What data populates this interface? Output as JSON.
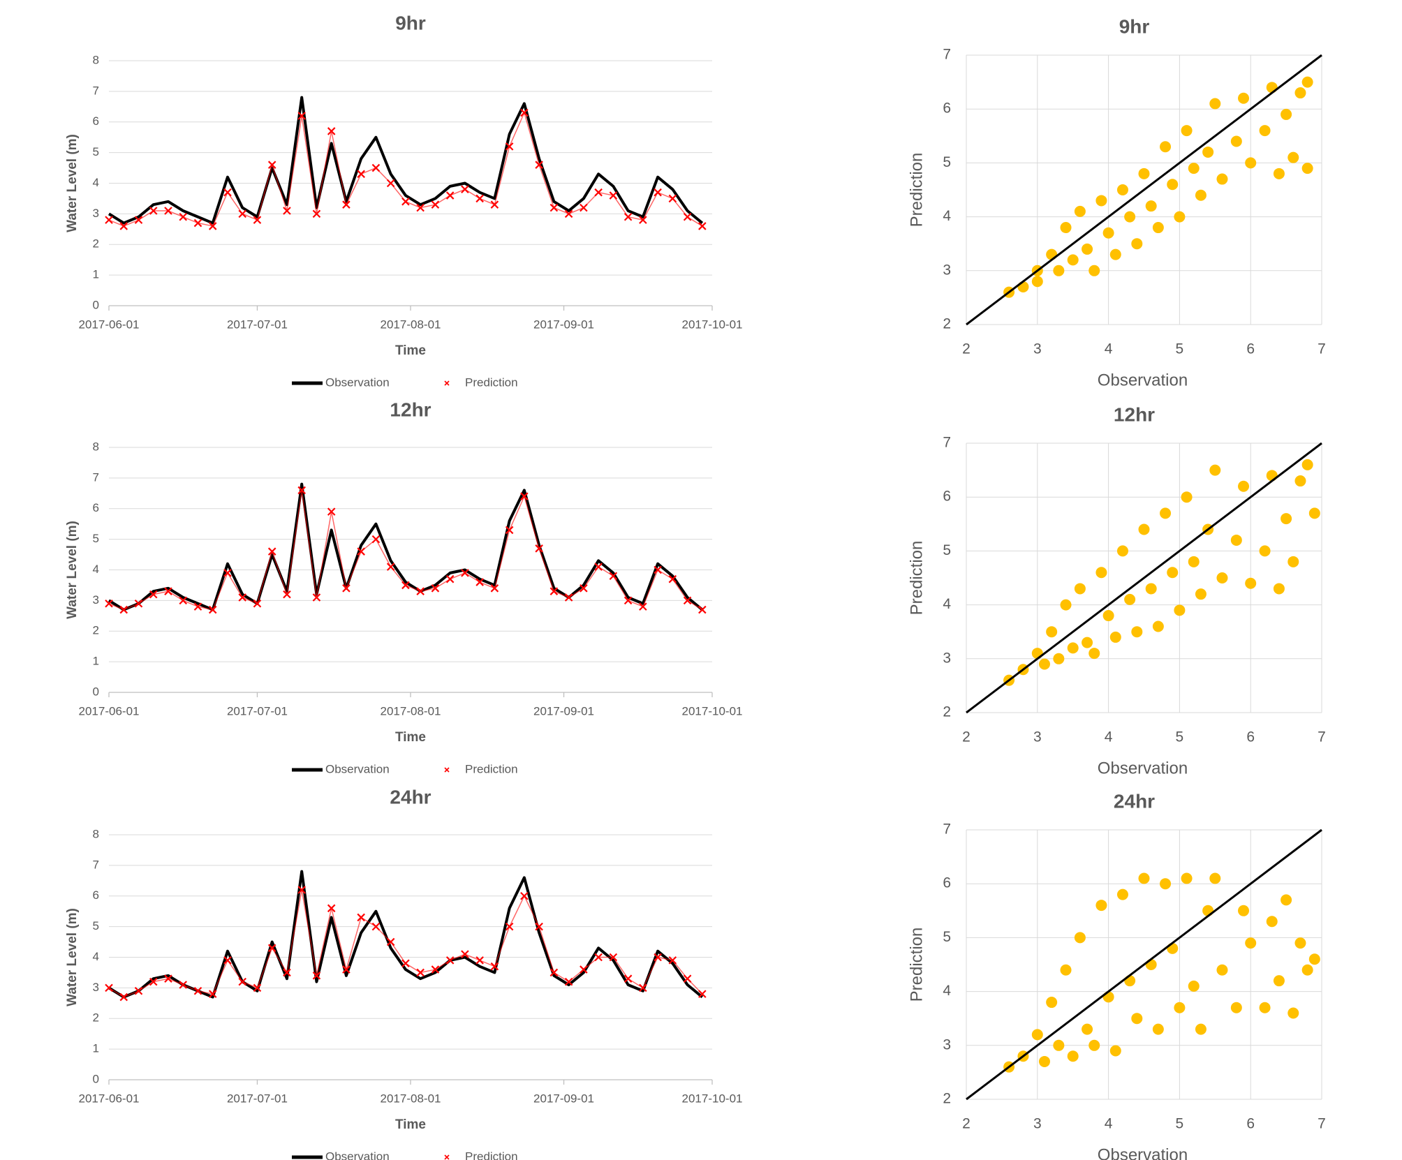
{
  "chart_data": [
    {
      "type": "line",
      "title": "9hr",
      "x_label": "Time",
      "y_label": "Water Level (m)",
      "grid": true,
      "legend": "bottom",
      "x": [
        "2017-06-01",
        "2017-06-04",
        "2017-06-07",
        "2017-06-10",
        "2017-06-13",
        "2017-06-16",
        "2017-06-19",
        "2017-06-22",
        "2017-06-25",
        "2017-06-28",
        "2017-07-01",
        "2017-07-04",
        "2017-07-07",
        "2017-07-10",
        "2017-07-13",
        "2017-07-16",
        "2017-07-19",
        "2017-07-22",
        "2017-07-25",
        "2017-07-28",
        "2017-07-31",
        "2017-08-03",
        "2017-08-06",
        "2017-08-09",
        "2017-08-12",
        "2017-08-15",
        "2017-08-18",
        "2017-08-21",
        "2017-08-24",
        "2017-08-27",
        "2017-08-30",
        "2017-09-02",
        "2017-09-05",
        "2017-09-08",
        "2017-09-11",
        "2017-09-14",
        "2017-09-17",
        "2017-09-20",
        "2017-09-23",
        "2017-09-26",
        "2017-09-29"
      ],
      "series": [
        {
          "name": "Observation",
          "color": "#000000",
          "marker": "line",
          "values": [
            3.0,
            2.7,
            2.9,
            3.3,
            3.4,
            3.1,
            2.9,
            2.7,
            4.2,
            3.2,
            2.9,
            4.5,
            3.3,
            6.8,
            3.2,
            5.3,
            3.4,
            4.8,
            5.5,
            4.3,
            3.6,
            3.3,
            3.5,
            3.9,
            4.0,
            3.7,
            3.5,
            5.6,
            6.6,
            4.8,
            3.4,
            3.1,
            3.5,
            4.3,
            3.9,
            3.1,
            2.9,
            4.2,
            3.8,
            3.1,
            2.7
          ]
        },
        {
          "name": "Prediction",
          "color": "#ff0000",
          "marker": "x",
          "values": [
            2.8,
            2.6,
            2.8,
            3.1,
            3.1,
            2.9,
            2.7,
            2.6,
            3.7,
            3.0,
            2.8,
            4.6,
            3.1,
            6.2,
            3.0,
            5.7,
            3.3,
            4.3,
            4.5,
            4.0,
            3.4,
            3.2,
            3.3,
            3.6,
            3.8,
            3.5,
            3.3,
            5.2,
            6.3,
            4.6,
            3.2,
            3.0,
            3.2,
            3.7,
            3.6,
            2.9,
            2.8,
            3.7,
            3.5,
            2.9,
            2.6
          ]
        }
      ],
      "xlim": [
        "2017-06-01",
        "2017-10-01"
      ],
      "xticks": [
        "2017-06-01",
        "2017-07-01",
        "2017-08-01",
        "2017-09-01",
        "2017-10-01"
      ],
      "ylim": [
        0,
        8
      ],
      "yticks": [
        0,
        1,
        2,
        3,
        4,
        5,
        6,
        7,
        8
      ]
    },
    {
      "type": "scatter",
      "title": "9hr",
      "x_label": "Observation",
      "y_label": "Prediction",
      "color": "#ffc000",
      "grid": true,
      "identity_line": true,
      "x": [
        2.6,
        2.8,
        3.0,
        3.0,
        3.2,
        3.3,
        3.4,
        3.5,
        3.6,
        3.7,
        3.8,
        3.9,
        4.0,
        4.1,
        4.2,
        4.3,
        4.4,
        4.5,
        4.6,
        4.7,
        4.8,
        4.9,
        5.0,
        5.1,
        5.2,
        5.3,
        5.4,
        5.5,
        5.6,
        5.8,
        5.9,
        6.0,
        6.2,
        6.3,
        6.4,
        6.5,
        6.6,
        6.7,
        6.8,
        6.8
      ],
      "values": [
        2.6,
        2.7,
        3.0,
        2.8,
        3.3,
        3.0,
        3.8,
        3.2,
        4.1,
        3.4,
        3.0,
        4.3,
        3.7,
        3.3,
        4.5,
        4.0,
        3.5,
        4.8,
        4.2,
        3.8,
        5.3,
        4.6,
        4.0,
        5.6,
        4.9,
        4.4,
        5.2,
        6.1,
        4.7,
        5.4,
        6.2,
        5.0,
        5.6,
        6.4,
        4.8,
        5.9,
        5.1,
        6.3,
        6.5,
        4.9
      ],
      "xlim": [
        2,
        7
      ],
      "xticks": [
        2,
        3,
        4,
        5,
        6,
        7
      ],
      "ylim": [
        2,
        7
      ],
      "yticks": [
        2,
        3,
        4,
        5,
        6,
        7
      ]
    },
    {
      "type": "line",
      "title": "12hr",
      "x_label": "Time",
      "y_label": "Water Level (m)",
      "grid": true,
      "legend": "bottom",
      "x": [
        "2017-06-01",
        "2017-06-04",
        "2017-06-07",
        "2017-06-10",
        "2017-06-13",
        "2017-06-16",
        "2017-06-19",
        "2017-06-22",
        "2017-06-25",
        "2017-06-28",
        "2017-07-01",
        "2017-07-04",
        "2017-07-07",
        "2017-07-10",
        "2017-07-13",
        "2017-07-16",
        "2017-07-19",
        "2017-07-22",
        "2017-07-25",
        "2017-07-28",
        "2017-07-31",
        "2017-08-03",
        "2017-08-06",
        "2017-08-09",
        "2017-08-12",
        "2017-08-15",
        "2017-08-18",
        "2017-08-21",
        "2017-08-24",
        "2017-08-27",
        "2017-08-30",
        "2017-09-02",
        "2017-09-05",
        "2017-09-08",
        "2017-09-11",
        "2017-09-14",
        "2017-09-17",
        "2017-09-20",
        "2017-09-23",
        "2017-09-26",
        "2017-09-29"
      ],
      "series": [
        {
          "name": "Observation",
          "color": "#000000",
          "marker": "line",
          "values": [
            3.0,
            2.7,
            2.9,
            3.3,
            3.4,
            3.1,
            2.9,
            2.7,
            4.2,
            3.2,
            2.9,
            4.5,
            3.3,
            6.8,
            3.2,
            5.3,
            3.4,
            4.8,
            5.5,
            4.3,
            3.6,
            3.3,
            3.5,
            3.9,
            4.0,
            3.7,
            3.5,
            5.6,
            6.6,
            4.8,
            3.4,
            3.1,
            3.5,
            4.3,
            3.9,
            3.1,
            2.9,
            4.2,
            3.8,
            3.1,
            2.7
          ]
        },
        {
          "name": "Prediction",
          "color": "#ff0000",
          "marker": "x",
          "values": [
            2.9,
            2.7,
            2.9,
            3.2,
            3.3,
            3.0,
            2.8,
            2.7,
            3.9,
            3.1,
            2.9,
            4.6,
            3.2,
            6.6,
            3.1,
            5.9,
            3.4,
            4.6,
            5.0,
            4.1,
            3.5,
            3.3,
            3.4,
            3.7,
            3.9,
            3.6,
            3.4,
            5.3,
            6.4,
            4.7,
            3.3,
            3.1,
            3.4,
            4.1,
            3.8,
            3.0,
            2.8,
            4.0,
            3.7,
            3.0,
            2.7
          ]
        }
      ],
      "xlim": [
        "2017-06-01",
        "2017-10-01"
      ],
      "xticks": [
        "2017-06-01",
        "2017-07-01",
        "2017-08-01",
        "2017-09-01",
        "2017-10-01"
      ],
      "ylim": [
        0,
        8
      ],
      "yticks": [
        0,
        1,
        2,
        3,
        4,
        5,
        6,
        7,
        8
      ]
    },
    {
      "type": "scatter",
      "title": "12hr",
      "x_label": "Observation",
      "y_label": "Prediction",
      "color": "#ffc000",
      "grid": true,
      "identity_line": true,
      "x": [
        2.6,
        2.8,
        3.0,
        3.1,
        3.2,
        3.3,
        3.4,
        3.5,
        3.6,
        3.7,
        3.8,
        3.9,
        4.0,
        4.1,
        4.2,
        4.3,
        4.4,
        4.5,
        4.6,
        4.7,
        4.8,
        4.9,
        5.0,
        5.1,
        5.2,
        5.3,
        5.4,
        5.5,
        5.6,
        5.8,
        5.9,
        6.0,
        6.2,
        6.3,
        6.4,
        6.5,
        6.6,
        6.7,
        6.8,
        6.9
      ],
      "values": [
        2.6,
        2.8,
        3.1,
        2.9,
        3.5,
        3.0,
        4.0,
        3.2,
        4.3,
        3.3,
        3.1,
        4.6,
        3.8,
        3.4,
        5.0,
        4.1,
        3.5,
        5.4,
        4.3,
        3.6,
        5.7,
        4.6,
        3.9,
        6.0,
        4.8,
        4.2,
        5.4,
        6.5,
        4.5,
        5.2,
        6.2,
        4.4,
        5.0,
        6.4,
        4.3,
        5.6,
        4.8,
        6.3,
        6.6,
        5.7
      ],
      "xlim": [
        2,
        7
      ],
      "xticks": [
        2,
        3,
        4,
        5,
        6,
        7
      ],
      "ylim": [
        2,
        7
      ],
      "yticks": [
        2,
        3,
        4,
        5,
        6,
        7
      ]
    },
    {
      "type": "line",
      "title": "24hr",
      "x_label": "Time",
      "y_label": "Water Level (m)",
      "grid": true,
      "legend": "bottom",
      "x": [
        "2017-06-01",
        "2017-06-04",
        "2017-06-07",
        "2017-06-10",
        "2017-06-13",
        "2017-06-16",
        "2017-06-19",
        "2017-06-22",
        "2017-06-25",
        "2017-06-28",
        "2017-07-01",
        "2017-07-04",
        "2017-07-07",
        "2017-07-10",
        "2017-07-13",
        "2017-07-16",
        "2017-07-19",
        "2017-07-22",
        "2017-07-25",
        "2017-07-28",
        "2017-07-31",
        "2017-08-03",
        "2017-08-06",
        "2017-08-09",
        "2017-08-12",
        "2017-08-15",
        "2017-08-18",
        "2017-08-21",
        "2017-08-24",
        "2017-08-27",
        "2017-08-30",
        "2017-09-02",
        "2017-09-05",
        "2017-09-08",
        "2017-09-11",
        "2017-09-14",
        "2017-09-17",
        "2017-09-20",
        "2017-09-23",
        "2017-09-26",
        "2017-09-29"
      ],
      "series": [
        {
          "name": "Observation",
          "color": "#000000",
          "marker": "line",
          "values": [
            3.0,
            2.7,
            2.9,
            3.3,
            3.4,
            3.1,
            2.9,
            2.7,
            4.2,
            3.2,
            2.9,
            4.5,
            3.3,
            6.8,
            3.2,
            5.3,
            3.4,
            4.8,
            5.5,
            4.3,
            3.6,
            3.3,
            3.5,
            3.9,
            4.0,
            3.7,
            3.5,
            5.6,
            6.6,
            4.8,
            3.4,
            3.1,
            3.5,
            4.3,
            3.9,
            3.1,
            2.9,
            4.2,
            3.8,
            3.1,
            2.7
          ]
        },
        {
          "name": "Prediction",
          "color": "#ff0000",
          "marker": "x",
          "values": [
            3.0,
            2.7,
            2.9,
            3.2,
            3.3,
            3.1,
            2.9,
            2.8,
            3.9,
            3.2,
            3.0,
            4.3,
            3.5,
            6.2,
            3.4,
            5.6,
            3.6,
            5.3,
            5.0,
            4.5,
            3.8,
            3.5,
            3.6,
            3.9,
            4.1,
            3.9,
            3.7,
            5.0,
            6.0,
            5.0,
            3.5,
            3.2,
            3.6,
            4.0,
            4.0,
            3.3,
            3.0,
            4.0,
            3.9,
            3.3,
            2.8
          ]
        }
      ],
      "xlim": [
        "2017-06-01",
        "2017-10-01"
      ],
      "xticks": [
        "2017-06-01",
        "2017-07-01",
        "2017-08-01",
        "2017-09-01",
        "2017-10-01"
      ],
      "ylim": [
        0,
        8
      ],
      "yticks": [
        0,
        1,
        2,
        3,
        4,
        5,
        6,
        7,
        8
      ]
    },
    {
      "type": "scatter",
      "title": "24hr",
      "x_label": "Observation",
      "y_label": "Prediction",
      "color": "#ffc000",
      "grid": true,
      "identity_line": true,
      "x": [
        2.6,
        2.8,
        3.0,
        3.1,
        3.2,
        3.3,
        3.4,
        3.5,
        3.6,
        3.7,
        3.8,
        3.9,
        4.0,
        4.1,
        4.2,
        4.3,
        4.4,
        4.5,
        4.6,
        4.7,
        4.8,
        4.9,
        5.0,
        5.1,
        5.2,
        5.3,
        5.4,
        5.5,
        5.6,
        5.8,
        5.9,
        6.0,
        6.2,
        6.3,
        6.4,
        6.5,
        6.6,
        6.7,
        6.8,
        6.9
      ],
      "values": [
        2.6,
        2.8,
        3.2,
        2.7,
        3.8,
        3.0,
        4.4,
        2.8,
        5.0,
        3.3,
        3.0,
        5.6,
        3.9,
        2.9,
        5.8,
        4.2,
        3.5,
        6.1,
        4.5,
        3.3,
        6.0,
        4.8,
        3.7,
        6.1,
        4.1,
        3.3,
        5.5,
        6.1,
        4.4,
        3.7,
        5.5,
        4.9,
        3.7,
        5.3,
        4.2,
        5.7,
        3.6,
        4.9,
        4.4,
        4.6
      ],
      "xlim": [
        2,
        7
      ],
      "xticks": [
        2,
        3,
        4,
        5,
        6,
        7
      ],
      "ylim": [
        2,
        7
      ],
      "yticks": [
        2,
        3,
        4,
        5,
        6,
        7
      ]
    }
  ]
}
